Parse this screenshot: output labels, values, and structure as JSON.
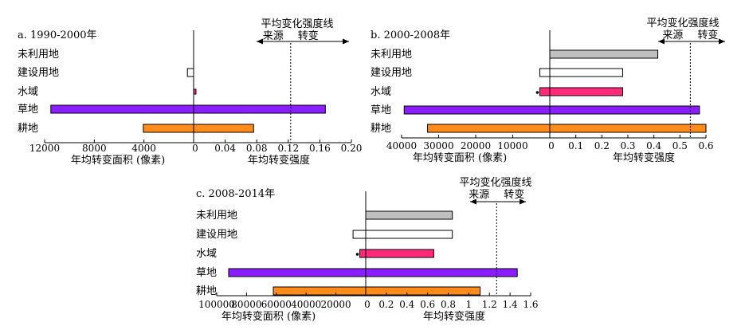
{
  "figure": {
    "intensity_line_label": "平均变化强度线",
    "source_label": "来源",
    "transfer_label": "转变"
  },
  "chart_data": [
    {
      "type": "bar",
      "panel_label": "a. 1990-2000年",
      "categories": [
        "未利用地",
        "建设用地",
        "水域",
        "草地",
        "耕地"
      ],
      "area_axis_label": "年均转变面积 (像素)",
      "intensity_axis_label": "年均转变强度",
      "area_ticks": [
        12000,
        8000,
        4000,
        0
      ],
      "intensity_ticks": [
        "0",
        "0.04",
        "0.08",
        "0.12",
        "0.16",
        "0.20"
      ],
      "area_xlim": [
        12000,
        0
      ],
      "intensity_xlim": [
        0,
        0.2
      ],
      "average_intensity": 0.123,
      "series": [
        {
          "name": "年均转变面积",
          "values": [
            0,
            500,
            0,
            11500,
            4050
          ]
        },
        {
          "name": "年均转变强度",
          "values": [
            0,
            0,
            0.003,
            0.167,
            0.076
          ]
        }
      ],
      "bar_colors": [
        "#c0c0c0",
        "#ffffff",
        "#ff2a7a",
        "#8b1eff",
        "#ff8c1a"
      ]
    },
    {
      "type": "bar",
      "panel_label": "b. 2000-2008年",
      "categories": [
        "未利用地",
        "建设用地",
        "水域",
        "草地",
        "耕地"
      ],
      "area_axis_label": "年均转变面积 (像素)",
      "intensity_axis_label": "年均转变强度",
      "area_ticks": [
        40000,
        30000,
        20000,
        10000,
        0
      ],
      "intensity_ticks": [
        "0",
        "0.1",
        "0.2",
        "0.3",
        "0.4",
        "0.5",
        "0.6"
      ],
      "area_xlim": [
        40000,
        0
      ],
      "intensity_xlim": [
        0,
        0.6
      ],
      "average_intensity": 0.54,
      "series": [
        {
          "name": "年均转变面积",
          "values": [
            0,
            2700,
            2700,
            39300,
            33000
          ]
        },
        {
          "name": "年均转变强度",
          "values": [
            0.415,
            0.28,
            0.28,
            0.575,
            0.6
          ]
        }
      ],
      "bar_colors": [
        "#c0c0c0",
        "#ffffff",
        "#ff2a7a",
        "#8b1eff",
        "#ff8c1a"
      ]
    },
    {
      "type": "bar",
      "panel_label": "c. 2008-2014年",
      "categories": [
        "未利用地",
        "建设用地",
        "水域",
        "草地",
        "耕地"
      ],
      "area_axis_label": "年均转变面积 (像素)",
      "intensity_axis_label": "年均转变强度",
      "area_ticks": [
        100000,
        80000,
        60000,
        40000,
        20000,
        0
      ],
      "intensity_ticks": [
        "0",
        "0.2",
        "0.4",
        "0.6",
        "0.8",
        "1",
        "1.2",
        "1.4",
        "1.6"
      ],
      "area_xlim": [
        100000,
        0
      ],
      "intensity_xlim": [
        0,
        1.6
      ],
      "average_intensity": 1.27,
      "series": [
        {
          "name": "年均转变面积",
          "values": [
            0,
            8500,
            4000,
            92000,
            62000
          ]
        },
        {
          "name": "年均转变强度",
          "values": [
            0.84,
            0.84,
            0.66,
            1.47,
            1.11
          ]
        }
      ],
      "bar_colors": [
        "#c0c0c0",
        "#ffffff",
        "#ff2a7a",
        "#8b1eff",
        "#ff8c1a"
      ]
    }
  ]
}
